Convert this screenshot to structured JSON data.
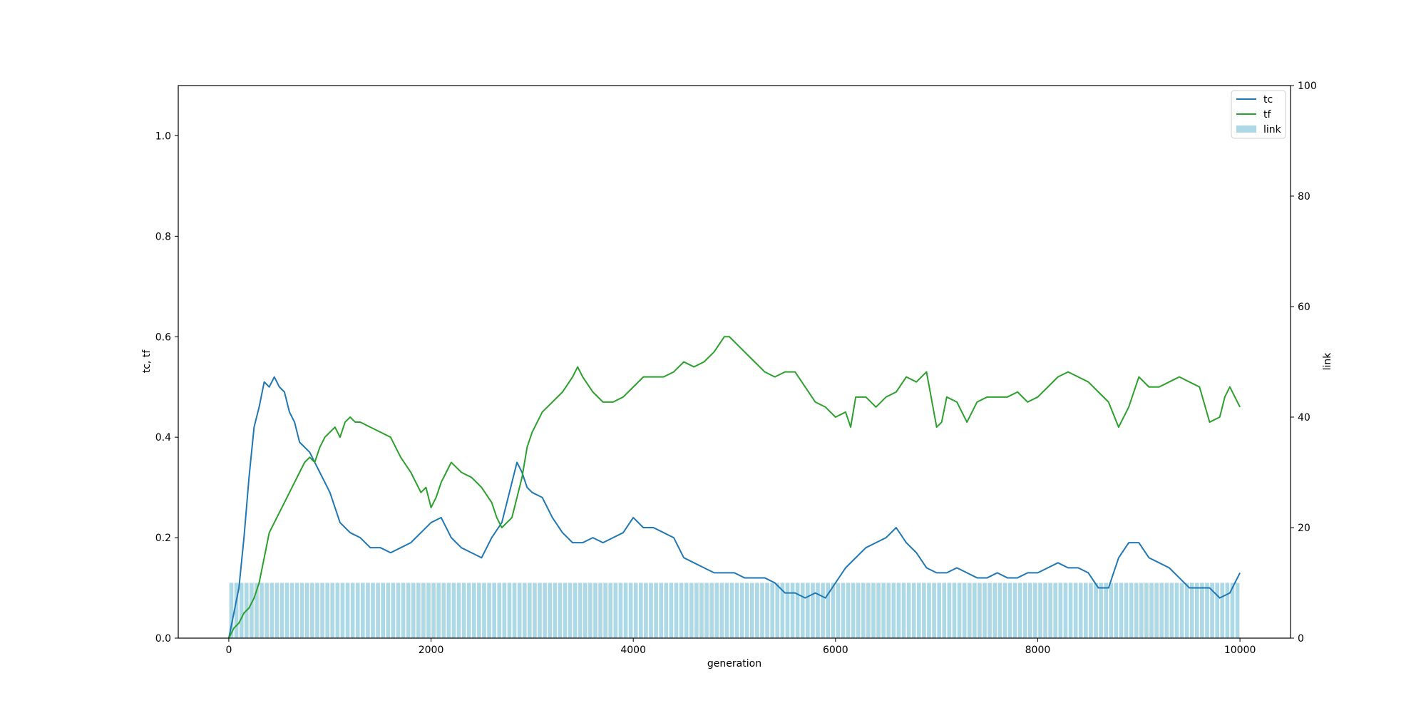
{
  "chart_data": {
    "type": "line",
    "xlabel": "generation",
    "ylabel_left": "tc, tf",
    "ylabel_right": "link",
    "xlim": [
      -500,
      10500
    ],
    "ylim_left": [
      0,
      1.1
    ],
    "ylim_right": [
      0,
      100
    ],
    "x_ticks": [
      0,
      2000,
      4000,
      6000,
      8000,
      10000
    ],
    "x_tick_labels": [
      "0",
      "2000",
      "4000",
      "6000",
      "8000",
      "10000"
    ],
    "y_left_ticks": [
      0.0,
      0.2,
      0.4,
      0.6,
      0.8,
      1.0
    ],
    "y_left_tick_labels": [
      "0.0",
      "0.2",
      "0.4",
      "0.6",
      "0.8",
      "1.0"
    ],
    "y_right_ticks": [
      0,
      20,
      40,
      60,
      80,
      100
    ],
    "y_right_tick_labels": [
      "0",
      "20",
      "40",
      "60",
      "80",
      "100"
    ],
    "legend_position": "top-right",
    "grid": false,
    "series": [
      {
        "name": "tc",
        "color": "#1f77b4",
        "axis": "left",
        "x": [
          0,
          50,
          100,
          150,
          200,
          250,
          300,
          350,
          400,
          450,
          500,
          550,
          600,
          650,
          700,
          750,
          800,
          850,
          900,
          950,
          1000,
          1050,
          1100,
          1150,
          1200,
          1300,
          1400,
          1500,
          1600,
          1700,
          1800,
          1900,
          2000,
          2100,
          2200,
          2300,
          2400,
          2500,
          2600,
          2700,
          2800,
          2850,
          2900,
          2950,
          3000,
          3100,
          3200,
          3300,
          3400,
          3500,
          3600,
          3700,
          3800,
          3900,
          4000,
          4100,
          4200,
          4300,
          4400,
          4500,
          4600,
          4700,
          4800,
          4900,
          5000,
          5100,
          5200,
          5300,
          5400,
          5500,
          5600,
          5700,
          5800,
          5900,
          6000,
          6100,
          6200,
          6300,
          6400,
          6500,
          6600,
          6700,
          6800,
          6900,
          7000,
          7100,
          7200,
          7300,
          7400,
          7500,
          7600,
          7700,
          7800,
          7900,
          8000,
          8100,
          8200,
          8300,
          8400,
          8500,
          8600,
          8700,
          8800,
          8900,
          9000,
          9100,
          9200,
          9300,
          9400,
          9500,
          9600,
          9700,
          9800,
          9900,
          10000
        ],
        "values": [
          0.0,
          0.05,
          0.1,
          0.2,
          0.32,
          0.42,
          0.46,
          0.51,
          0.5,
          0.52,
          0.5,
          0.49,
          0.45,
          0.43,
          0.39,
          0.38,
          0.37,
          0.35,
          0.33,
          0.31,
          0.29,
          0.26,
          0.23,
          0.22,
          0.21,
          0.2,
          0.18,
          0.18,
          0.17,
          0.18,
          0.19,
          0.21,
          0.23,
          0.24,
          0.2,
          0.18,
          0.17,
          0.16,
          0.2,
          0.23,
          0.31,
          0.35,
          0.33,
          0.3,
          0.29,
          0.28,
          0.24,
          0.21,
          0.19,
          0.19,
          0.2,
          0.19,
          0.2,
          0.21,
          0.24,
          0.22,
          0.22,
          0.21,
          0.2,
          0.16,
          0.15,
          0.14,
          0.13,
          0.13,
          0.13,
          0.12,
          0.12,
          0.12,
          0.11,
          0.09,
          0.09,
          0.08,
          0.09,
          0.08,
          0.11,
          0.14,
          0.16,
          0.18,
          0.19,
          0.2,
          0.22,
          0.19,
          0.17,
          0.14,
          0.13,
          0.13,
          0.14,
          0.13,
          0.12,
          0.12,
          0.13,
          0.12,
          0.12,
          0.13,
          0.13,
          0.14,
          0.15,
          0.14,
          0.14,
          0.13,
          0.1,
          0.1,
          0.16,
          0.19,
          0.19,
          0.16,
          0.15,
          0.14,
          0.12,
          0.1,
          0.1,
          0.1,
          0.08,
          0.09,
          0.13
        ]
      },
      {
        "name": "tf",
        "color": "#2ca02c",
        "axis": "left",
        "x": [
          0,
          50,
          100,
          150,
          200,
          250,
          300,
          350,
          400,
          450,
          500,
          550,
          600,
          650,
          700,
          750,
          800,
          850,
          900,
          950,
          1000,
          1050,
          1100,
          1150,
          1200,
          1250,
          1300,
          1400,
          1500,
          1600,
          1700,
          1800,
          1850,
          1900,
          1950,
          2000,
          2050,
          2100,
          2150,
          2200,
          2300,
          2400,
          2500,
          2600,
          2650,
          2700,
          2800,
          2900,
          2950,
          3000,
          3100,
          3200,
          3300,
          3400,
          3450,
          3500,
          3600,
          3700,
          3800,
          3900,
          4000,
          4100,
          4200,
          4300,
          4400,
          4500,
          4600,
          4700,
          4800,
          4900,
          4950,
          5000,
          5100,
          5200,
          5300,
          5400,
          5500,
          5600,
          5700,
          5800,
          5900,
          6000,
          6100,
          6150,
          6200,
          6300,
          6400,
          6500,
          6600,
          6700,
          6800,
          6900,
          7000,
          7050,
          7100,
          7200,
          7300,
          7400,
          7500,
          7600,
          7700,
          7800,
          7900,
          8000,
          8100,
          8200,
          8300,
          8400,
          8500,
          8600,
          8700,
          8800,
          8900,
          9000,
          9100,
          9200,
          9300,
          9400,
          9500,
          9600,
          9700,
          9800,
          9850,
          9900,
          10000
        ],
        "values": [
          0.0,
          0.02,
          0.03,
          0.05,
          0.06,
          0.08,
          0.11,
          0.16,
          0.21,
          0.23,
          0.25,
          0.27,
          0.29,
          0.31,
          0.33,
          0.35,
          0.36,
          0.35,
          0.38,
          0.4,
          0.41,
          0.42,
          0.4,
          0.43,
          0.44,
          0.43,
          0.43,
          0.42,
          0.41,
          0.4,
          0.36,
          0.33,
          0.31,
          0.29,
          0.3,
          0.26,
          0.28,
          0.31,
          0.33,
          0.35,
          0.33,
          0.32,
          0.3,
          0.27,
          0.24,
          0.22,
          0.24,
          0.32,
          0.38,
          0.41,
          0.45,
          0.47,
          0.49,
          0.52,
          0.54,
          0.52,
          0.49,
          0.47,
          0.47,
          0.48,
          0.5,
          0.52,
          0.52,
          0.52,
          0.53,
          0.55,
          0.54,
          0.55,
          0.57,
          0.6,
          0.6,
          0.59,
          0.57,
          0.55,
          0.53,
          0.52,
          0.53,
          0.53,
          0.5,
          0.47,
          0.46,
          0.44,
          0.45,
          0.42,
          0.48,
          0.48,
          0.46,
          0.48,
          0.49,
          0.52,
          0.51,
          0.53,
          0.42,
          0.43,
          0.48,
          0.47,
          0.43,
          0.47,
          0.48,
          0.48,
          0.48,
          0.49,
          0.47,
          0.48,
          0.5,
          0.52,
          0.53,
          0.52,
          0.51,
          0.49,
          0.47,
          0.42,
          0.46,
          0.52,
          0.5,
          0.5,
          0.51,
          0.52,
          0.51,
          0.5,
          0.43,
          0.44,
          0.48,
          0.5,
          0.46
        ]
      }
    ],
    "bars": {
      "name": "link",
      "color": "#add8e6",
      "axis": "right",
      "x_start": 0,
      "x_end": 10000,
      "step": 50,
      "value": 10
    }
  }
}
